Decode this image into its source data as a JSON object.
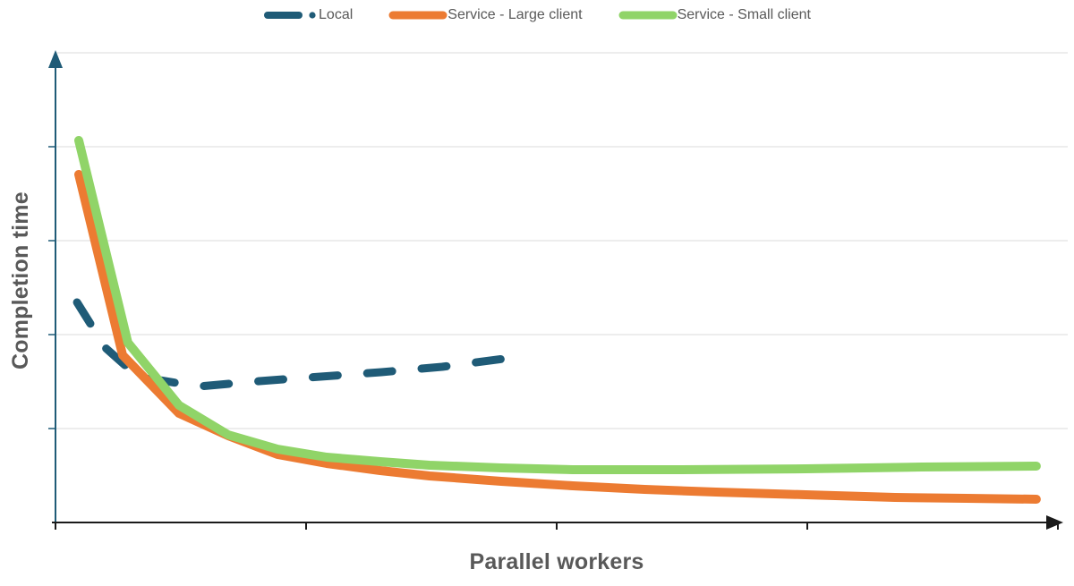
{
  "chart_data": {
    "type": "line",
    "title": "",
    "xlabel": "Parallel workers",
    "ylabel": "Completion time",
    "note": "Conceptual chart: both axes are unlabeled (no numeric tick labels). Values are estimated in relative grid units: x in x-tick units (0-4), y in horizontal-gridline units (0-5, 0 = x-axis baseline).",
    "x_axis": {
      "range": [
        0,
        4
      ],
      "ticks": [
        0,
        1,
        2,
        3,
        4
      ],
      "tick_labels": [],
      "arrow": "right"
    },
    "y_axis": {
      "range": [
        0,
        5
      ],
      "gridlines": [
        1,
        2,
        3,
        4,
        5
      ],
      "ticks": [
        1,
        2,
        3,
        4
      ],
      "tick_labels": [],
      "arrow": "up"
    },
    "legend_position": "top-center",
    "grid": "horizontal-only",
    "series": [
      {
        "id": "local",
        "name": "Local",
        "color": "#1f5b77",
        "style": "dashed",
        "width": 9,
        "points": [
          [
            0.086,
            2.343
          ],
          [
            0.2,
            1.857
          ],
          [
            0.329,
            1.552
          ],
          [
            0.571,
            1.448
          ],
          [
            0.814,
            1.505
          ],
          [
            1.057,
            1.552
          ],
          [
            1.3,
            1.6
          ],
          [
            1.543,
            1.657
          ],
          [
            1.789,
            1.743
          ]
        ]
      },
      {
        "id": "service-large-client",
        "name": "Service - Large client",
        "color": "#ec7b32",
        "style": "solid",
        "width": 10,
        "points": [
          [
            0.093,
            3.705
          ],
          [
            0.268,
            1.781
          ],
          [
            0.493,
            1.162
          ],
          [
            0.689,
            0.924
          ],
          [
            0.886,
            0.724
          ],
          [
            1.082,
            0.629
          ],
          [
            1.296,
            0.552
          ],
          [
            1.493,
            0.495
          ],
          [
            1.779,
            0.438
          ],
          [
            2.064,
            0.39
          ],
          [
            2.35,
            0.352
          ],
          [
            2.636,
            0.324
          ],
          [
            2.993,
            0.295
          ],
          [
            3.35,
            0.267
          ],
          [
            3.636,
            0.257
          ],
          [
            3.914,
            0.248
          ]
        ]
      },
      {
        "id": "service-small-client",
        "name": "Service - Small client",
        "color": "#90d468",
        "style": "solid",
        "width": 10,
        "points": [
          [
            0.093,
            4.067
          ],
          [
            0.289,
            1.914
          ],
          [
            0.493,
            1.248
          ],
          [
            0.689,
            0.933
          ],
          [
            0.886,
            0.781
          ],
          [
            1.082,
            0.695
          ],
          [
            1.296,
            0.648
          ],
          [
            1.493,
            0.61
          ],
          [
            1.779,
            0.581
          ],
          [
            2.064,
            0.562
          ],
          [
            2.493,
            0.562
          ],
          [
            2.993,
            0.571
          ],
          [
            3.457,
            0.59
          ],
          [
            3.914,
            0.6
          ]
        ]
      }
    ]
  },
  "colors": {
    "background": "#ffffff",
    "gridline": "#e7e7e7",
    "x_axis": "#1a1a1a",
    "y_axis": "#1f5b77",
    "label_text": "#595959"
  }
}
